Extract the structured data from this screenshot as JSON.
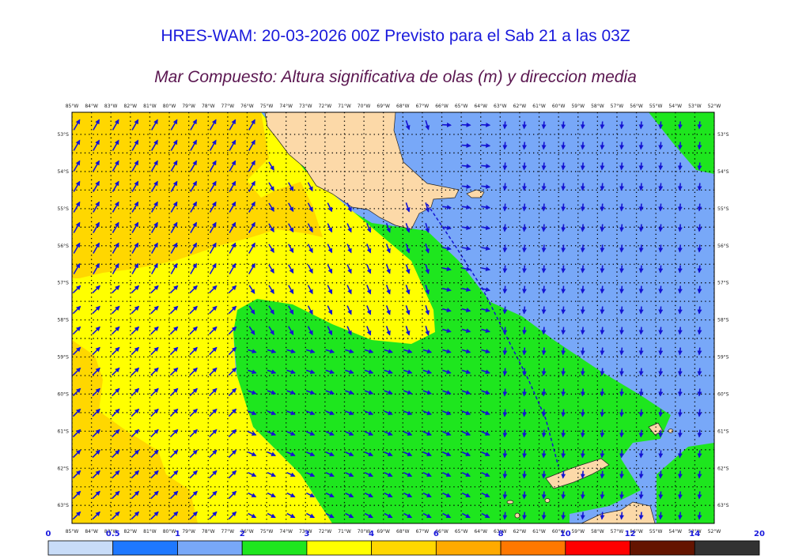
{
  "title": "HRES-WAM: 20-03-2026 00Z Previsto para el Sab 21 a las 03Z",
  "subtitle": "Mar Compuesto: Altura significativa de olas (m) y direccion media",
  "map": {
    "lon_labels": [
      "85°W",
      "84°W",
      "83°W",
      "82°W",
      "81°W",
      "80°W",
      "79°W",
      "78°W",
      "77°W",
      "76°W",
      "75°W",
      "74°W",
      "73°W",
      "72°W",
      "71°W",
      "70°W",
      "69°W",
      "68°W",
      "67°W",
      "66°W",
      "65°W",
      "64°W",
      "63°W",
      "62°W",
      "61°W",
      "60°W",
      "59°W",
      "58°W",
      "57°W",
      "56°W",
      "55°W",
      "54°W",
      "53°W",
      "52°W"
    ],
    "lat_labels": [
      "53°S",
      "54°S",
      "55°S",
      "56°S",
      "57°S",
      "58°S",
      "59°S",
      "60°S",
      "61°S",
      "62°S",
      "63°S"
    ],
    "colors": {
      "land": "#fcd9a8",
      "blue_1_2": "#78a8f8",
      "green_2_3": "#1ee61e",
      "yellow_3_4": "#ffff00",
      "gold_4_6": "#ffd700",
      "arrow": "#1414d2"
    }
  },
  "colorbar": {
    "labels": [
      "0",
      "0.5",
      "1",
      "2",
      "3",
      "4",
      "6",
      "8",
      "10",
      "12",
      "14",
      "20"
    ],
    "colors": [
      "#c8dcf8",
      "#1e78ff",
      "#78a8f8",
      "#1ee61e",
      "#ffff00",
      "#ffd700",
      "#ffaa00",
      "#ff7800",
      "#ff0000",
      "#641400",
      "#323232"
    ]
  }
}
